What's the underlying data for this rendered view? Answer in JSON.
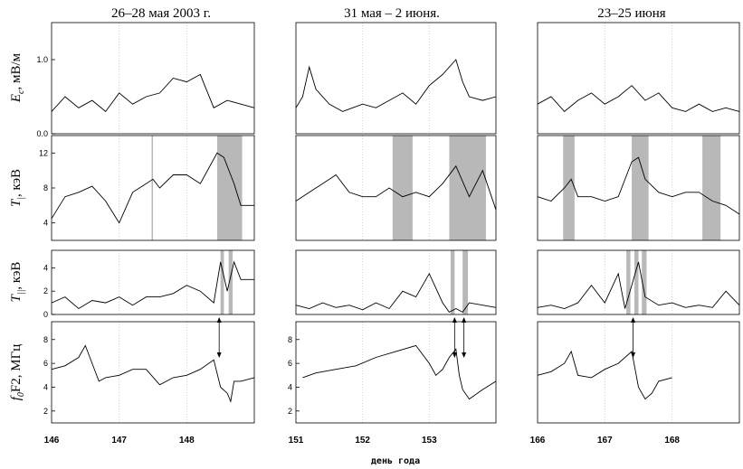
{
  "figure": {
    "xlabel": "день года",
    "row_labels": [
      "E",
      "T",
      "T",
      "f",
      "F2"
    ],
    "row_label_parts": {
      "e": {
        "main": "E",
        "sub": "c",
        "unit": ", мВ/м"
      },
      "tperp": {
        "main": "T",
        "sub": "|",
        "unit": ", кэВ"
      },
      "tpar": {
        "main": "T",
        "sub": "||",
        "unit": ", кэВ"
      },
      "fof2": {
        "main": "f",
        "sub": "0",
        "unit": "F2, МГц"
      }
    }
  },
  "chart_data": [
    {
      "type": "line",
      "title": "26–28 мая 2003 г.",
      "x_ticks": [
        146,
        147,
        148
      ],
      "x_tick_labels": [
        "146",
        "147",
        "148"
      ],
      "xlim": [
        146,
        149
      ],
      "panels": {
        "e": {
          "ylim": [
            0,
            1.5
          ],
          "yticks": [
            0.0,
            1.0
          ],
          "ytick_labels": [
            "0.0",
            "1.0"
          ],
          "x": [
            146.0,
            146.2,
            146.4,
            146.6,
            146.8,
            147.0,
            147.2,
            147.4,
            147.6,
            147.8,
            148.0,
            148.2,
            148.4,
            148.6,
            148.8,
            149.0
          ],
          "y": [
            0.3,
            0.5,
            0.35,
            0.45,
            0.3,
            0.55,
            0.4,
            0.5,
            0.55,
            0.75,
            0.7,
            0.8,
            0.35,
            0.45,
            0.4,
            0.35
          ],
          "shaded": []
        },
        "tperp": {
          "ylim": [
            2,
            14
          ],
          "yticks": [
            4,
            8,
            12
          ],
          "ytick_labels": [
            "4",
            "8",
            "12"
          ],
          "x": [
            146.0,
            146.2,
            146.4,
            146.6,
            146.8,
            147.0,
            147.2,
            147.4,
            147.5,
            147.6,
            147.8,
            148.0,
            148.2,
            148.45,
            148.55,
            148.7,
            148.8,
            149.0
          ],
          "y": [
            4.5,
            7.0,
            7.5,
            8.2,
            6.5,
            4.0,
            7.5,
            8.5,
            9.0,
            8.0,
            9.5,
            9.5,
            8.5,
            12.0,
            11.5,
            8.5,
            6.0,
            6.0
          ],
          "shaded": [
            [
              147.48,
              147.5
            ],
            [
              148.45,
              148.82
            ]
          ]
        },
        "tpar": {
          "ylim": [
            0,
            5.5
          ],
          "yticks": [
            0,
            2,
            4
          ],
          "ytick_labels": [
            "0",
            "2",
            "4"
          ],
          "x": [
            146.0,
            146.2,
            146.4,
            146.6,
            146.8,
            147.0,
            147.2,
            147.4,
            147.6,
            147.8,
            148.0,
            148.2,
            148.4,
            148.5,
            148.6,
            148.7,
            148.8,
            149.0
          ],
          "y": [
            1.0,
            1.5,
            0.5,
            1.2,
            1.0,
            1.5,
            0.8,
            1.5,
            1.5,
            1.8,
            2.5,
            2.0,
            1.0,
            4.5,
            2.0,
            4.5,
            3.0,
            3.0
          ],
          "shaded": [
            [
              148.5,
              148.55
            ],
            [
              148.62,
              148.68
            ]
          ]
        },
        "fof2": {
          "ylim": [
            1,
            9.5
          ],
          "yticks": [
            2,
            4,
            6,
            8
          ],
          "ytick_labels": [
            "2",
            "4",
            "6",
            "8"
          ],
          "x": [
            146.0,
            146.2,
            146.4,
            146.5,
            146.6,
            146.7,
            146.8,
            147.0,
            147.2,
            147.4,
            147.6,
            147.8,
            148.0,
            148.2,
            148.4,
            148.5,
            148.6,
            148.65,
            148.7,
            148.8,
            149.0
          ],
          "y": [
            5.5,
            5.8,
            6.5,
            7.5,
            6.0,
            4.5,
            4.8,
            5.0,
            5.5,
            5.5,
            4.2,
            4.8,
            5.0,
            5.5,
            6.3,
            4.0,
            3.5,
            2.8,
            4.5,
            4.5,
            4.8
          ],
          "shaded": []
        }
      },
      "arrows": [
        148.48
      ]
    },
    {
      "type": "line",
      "title": "31 мая – 2 июня.",
      "x_ticks": [
        151,
        152,
        153
      ],
      "x_tick_labels": [
        "151",
        "152",
        "153"
      ],
      "xlim": [
        151,
        154
      ],
      "panels": {
        "e": {
          "ylim": [
            0,
            1.5
          ],
          "yticks": [],
          "ytick_labels": [],
          "x": [
            151.0,
            151.1,
            151.2,
            151.3,
            151.5,
            151.7,
            152.0,
            152.2,
            152.4,
            152.6,
            152.8,
            153.0,
            153.2,
            153.4,
            153.5,
            153.6,
            153.8,
            154.0
          ],
          "y": [
            0.35,
            0.5,
            0.9,
            0.6,
            0.4,
            0.3,
            0.4,
            0.35,
            0.45,
            0.55,
            0.4,
            0.65,
            0.8,
            1.0,
            0.7,
            0.5,
            0.45,
            0.5
          ],
          "shaded": []
        },
        "tperp": {
          "ylim": [
            2,
            14
          ],
          "yticks": [],
          "ytick_labels": [],
          "x": [
            151.0,
            151.2,
            151.4,
            151.6,
            151.8,
            152.0,
            152.2,
            152.4,
            152.6,
            152.8,
            153.0,
            153.2,
            153.4,
            153.6,
            153.8,
            154.0
          ],
          "y": [
            6.5,
            7.5,
            8.5,
            9.5,
            7.5,
            7.0,
            7.0,
            8.0,
            7.0,
            7.5,
            7.0,
            8.5,
            10.5,
            7.0,
            10.0,
            5.5
          ],
          "shaded": [
            [
              152.45,
              152.75
            ],
            [
              153.3,
              153.85
            ]
          ]
        },
        "tpar": {
          "ylim": [
            0,
            5.5
          ],
          "yticks": [],
          "ytick_labels": [],
          "x": [
            151.0,
            151.2,
            151.4,
            151.6,
            151.8,
            152.0,
            152.2,
            152.4,
            152.6,
            152.8,
            153.0,
            153.2,
            153.3,
            153.4,
            153.5,
            153.6,
            153.8,
            154.0
          ],
          "y": [
            0.8,
            0.5,
            1.0,
            0.6,
            0.8,
            0.4,
            1.0,
            0.5,
            2.0,
            1.5,
            3.5,
            1.0,
            0.2,
            0.5,
            0.2,
            1.0,
            0.8,
            0.6
          ],
          "shaded": [
            [
              153.32,
              153.38
            ],
            [
              153.5,
              153.58
            ]
          ]
        },
        "fof2": {
          "ylim": [
            1,
            9.5
          ],
          "yticks": [
            2,
            4,
            6,
            8
          ],
          "ytick_labels": [
            "2",
            "4",
            "6",
            "8"
          ],
          "x": [
            151.1,
            151.3,
            151.6,
            151.9,
            152.2,
            152.5,
            152.8,
            153.0,
            153.1,
            153.2,
            153.3,
            153.4,
            153.45,
            153.5,
            153.6,
            153.8,
            154.0
          ],
          "y": [
            4.8,
            5.2,
            5.5,
            5.8,
            6.5,
            7.0,
            7.5,
            6.0,
            5.0,
            5.5,
            6.5,
            7.2,
            5.0,
            3.8,
            3.0,
            3.8,
            4.5
          ],
          "shaded": []
        }
      },
      "arrows": [
        153.38,
        153.52
      ]
    },
    {
      "type": "line",
      "title": "23–25 июня",
      "x_ticks": [
        166,
        167,
        168
      ],
      "x_tick_labels": [
        "166",
        "167",
        "168"
      ],
      "xlim": [
        166,
        169
      ],
      "panels": {
        "e": {
          "ylim": [
            0,
            1.5
          ],
          "yticks": [],
          "ytick_labels": [],
          "x": [
            166.0,
            166.2,
            166.4,
            166.6,
            166.8,
            167.0,
            167.2,
            167.4,
            167.6,
            167.8,
            168.0,
            168.2,
            168.4,
            168.6,
            168.8,
            169.0
          ],
          "y": [
            0.4,
            0.5,
            0.3,
            0.45,
            0.55,
            0.4,
            0.5,
            0.65,
            0.45,
            0.55,
            0.35,
            0.3,
            0.4,
            0.3,
            0.35,
            0.3
          ],
          "shaded": []
        },
        "tperp": {
          "ylim": [
            2,
            14
          ],
          "yticks": [],
          "ytick_labels": [],
          "x": [
            166.0,
            166.2,
            166.4,
            166.5,
            166.6,
            166.8,
            167.0,
            167.2,
            167.4,
            167.5,
            167.6,
            167.8,
            168.0,
            168.2,
            168.4,
            168.6,
            168.8,
            169.0
          ],
          "y": [
            7.0,
            6.5,
            8.0,
            9.0,
            7.0,
            7.0,
            6.5,
            7.0,
            11.0,
            11.5,
            9.0,
            7.5,
            7.0,
            7.5,
            7.5,
            6.5,
            6.0,
            5.0
          ],
          "shaded": [
            [
              166.38,
              166.55
            ],
            [
              167.4,
              167.65
            ],
            [
              168.45,
              168.72
            ]
          ]
        },
        "tpar": {
          "ylim": [
            0,
            5.5
          ],
          "yticks": [],
          "ytick_labels": [],
          "x": [
            166.0,
            166.2,
            166.4,
            166.6,
            166.8,
            167.0,
            167.2,
            167.3,
            167.4,
            167.5,
            167.6,
            167.8,
            168.0,
            168.2,
            168.4,
            168.6,
            168.8,
            169.0
          ],
          "y": [
            0.6,
            0.8,
            0.5,
            1.0,
            2.5,
            1.0,
            3.5,
            0.5,
            2.5,
            4.5,
            1.5,
            0.8,
            1.0,
            0.6,
            0.8,
            0.6,
            2.0,
            0.8
          ],
          "shaded": [
            [
              167.32,
              167.38
            ],
            [
              167.44,
              167.5
            ],
            [
              167.55,
              167.62
            ]
          ]
        },
        "fof2": {
          "ylim": [
            1,
            9.5
          ],
          "yticks": [],
          "ytick_labels": [],
          "x": [
            166.0,
            166.2,
            166.4,
            166.5,
            166.6,
            166.8,
            167.0,
            167.2,
            167.4,
            167.5,
            167.6,
            167.7,
            167.8,
            168.0
          ],
          "y": [
            5.0,
            5.3,
            6.0,
            7.0,
            5.0,
            4.8,
            5.5,
            6.0,
            7.0,
            4.0,
            3.0,
            3.5,
            4.5,
            4.8
          ],
          "shaded": []
        }
      },
      "arrows": [
        167.42
      ]
    }
  ]
}
